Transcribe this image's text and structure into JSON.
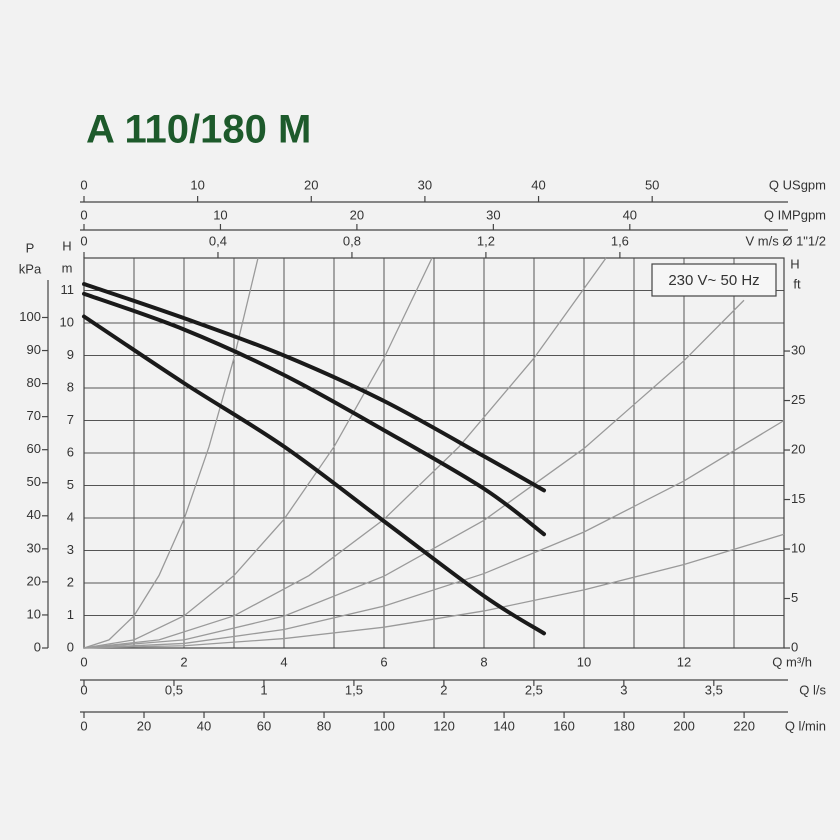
{
  "chart_data": {
    "type": "line",
    "title": "A 110/180 M",
    "annotation": "230 V~ 50 Hz",
    "x": [
      0,
      2,
      4,
      6,
      8,
      9.2
    ],
    "series": [
      {
        "color": "#1a1a1a",
        "values": [
          11.2,
          10.15,
          9.0,
          7.6,
          5.9,
          4.85
        ]
      },
      {
        "color": "#1a1a1a",
        "values": [
          10.9,
          9.8,
          8.4,
          6.7,
          4.9,
          3.5
        ]
      },
      {
        "color": "#1a1a1a",
        "values": [
          10.2,
          8.15,
          6.2,
          3.9,
          1.6,
          0.45
        ]
      }
    ],
    "system_curves": [
      {
        "color": "#9a9a9a",
        "x": [
          0,
          0.5,
          1,
          1.5,
          2,
          2.5,
          3,
          3.48
        ],
        "values": [
          0,
          0.25,
          0.99,
          2.23,
          3.96,
          6.19,
          8.92,
          12
        ]
      },
      {
        "color": "#9a9a9a",
        "x": [
          0,
          1,
          2,
          3,
          4,
          5,
          6,
          6.96
        ],
        "values": [
          0,
          0.25,
          0.99,
          2.23,
          3.96,
          6.19,
          8.92,
          12
        ]
      },
      {
        "color": "#9a9a9a",
        "x": [
          0,
          1.5,
          3,
          4.5,
          6,
          7.5,
          9,
          10.44
        ],
        "values": [
          0,
          0.25,
          0.99,
          2.23,
          3.96,
          6.19,
          8.92,
          12
        ]
      },
      {
        "color": "#9a9a9a",
        "x": [
          0,
          2,
          4,
          6,
          8,
          10,
          12,
          13.2
        ],
        "values": [
          0,
          0.25,
          0.98,
          2.21,
          3.93,
          6.14,
          8.84,
          10.7
        ]
      },
      {
        "color": "#9a9a9a",
        "x": [
          0,
          2,
          4,
          6,
          8,
          10,
          12,
          14
        ],
        "values": [
          0,
          0.14,
          0.57,
          1.29,
          2.29,
          3.57,
          5.14,
          7.0
        ]
      },
      {
        "color": "#9a9a9a",
        "x": [
          0,
          2,
          4,
          6,
          8,
          10,
          12,
          14
        ],
        "values": [
          0,
          0.07,
          0.29,
          0.64,
          1.14,
          1.79,
          2.57,
          3.5
        ]
      }
    ],
    "xlabel": "Q m³/h",
    "xlim": [
      0,
      14
    ],
    "xticks": [
      0,
      2,
      4,
      6,
      8,
      10,
      12
    ],
    "xminor": [
      1,
      3,
      5,
      7,
      9,
      11,
      13
    ],
    "ylabel": {
      "symbol": "H",
      "unit": "m"
    },
    "ylim": [
      0,
      12
    ],
    "yticks": [
      0,
      1,
      2,
      3,
      4,
      5,
      6,
      7,
      8,
      9,
      10,
      11
    ],
    "grid": true,
    "axes": [
      {
        "position": "top",
        "label": "Q USgpm",
        "lim": [
          0,
          61.6
        ],
        "ticks": [
          0,
          10,
          20,
          30,
          40,
          50
        ]
      },
      {
        "position": "top",
        "label": "Q IMPgpm",
        "lim": [
          0,
          51.3
        ],
        "ticks": [
          0,
          10,
          20,
          30,
          40
        ]
      },
      {
        "position": "top",
        "label": "V m/s Ø 1\"1/2",
        "lim": [
          0,
          2.09
        ],
        "ticks": [
          0,
          {
            "value": 0.4,
            "label": "0,4"
          },
          {
            "value": 0.8,
            "label": "0,8"
          },
          {
            "value": 1.2,
            "label": "1,2"
          },
          {
            "value": 1.6,
            "label": "1,6"
          }
        ]
      },
      {
        "position": "bottom",
        "label": "Q l/s",
        "lim": [
          0,
          3.89
        ],
        "ticks": [
          0,
          {
            "value": 0.5,
            "label": "0,5"
          },
          1,
          {
            "value": 1.5,
            "label": "1,5"
          },
          2,
          {
            "value": 2.5,
            "label": "2,5"
          },
          3,
          {
            "value": 3.5,
            "label": "3,5"
          }
        ]
      },
      {
        "position": "bottom",
        "label": "Q l/min",
        "lim": [
          0,
          233.3
        ],
        "ticks": [
          0,
          20,
          40,
          60,
          80,
          100,
          120,
          140,
          160,
          180,
          200,
          220
        ]
      },
      {
        "position": "left",
        "label": {
          "symbol": "P",
          "unit": "kPa"
        },
        "lim": [
          0,
          118
        ],
        "ticks": [
          0,
          10,
          20,
          30,
          40,
          50,
          60,
          70,
          80,
          90,
          100
        ]
      },
      {
        "position": "right",
        "label": {
          "symbol": "H",
          "unit": "ft"
        },
        "lim": [
          0,
          39.4
        ],
        "ticks": [
          0,
          5,
          10,
          15,
          20,
          25,
          30
        ]
      }
    ]
  }
}
